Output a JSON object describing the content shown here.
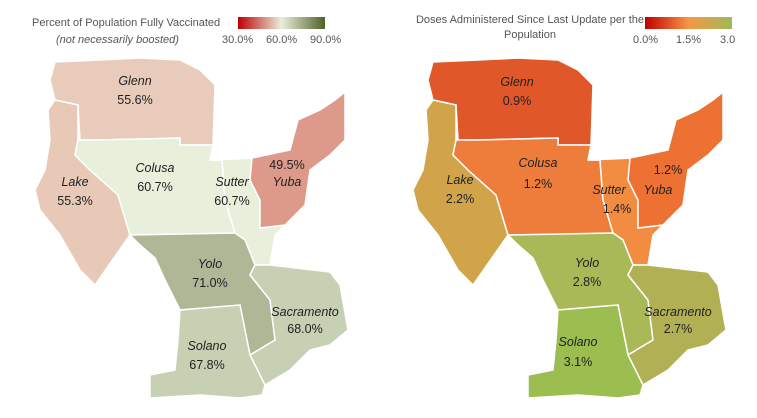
{
  "left_map": {
    "title": "Percent of Population Fully Vaccinated",
    "subtitle": "(not necessarily boosted)",
    "legend": {
      "labels": [
        "30.0%",
        "60.0%",
        "90.0%"
      ],
      "colors": [
        "#c00000",
        "#e8eedc",
        "#4f6228"
      ]
    },
    "counties": [
      {
        "name": "Glenn",
        "value": "55.6%",
        "color": "#e8cbbb"
      },
      {
        "name": "Lake",
        "value": "55.3%",
        "color": "#e8c9b8"
      },
      {
        "name": "Colusa",
        "value": "60.7%",
        "color": "#e8efdb"
      },
      {
        "name": "Sutter",
        "value": "60.7%",
        "color": "#e8efdb"
      },
      {
        "name": "Yuba",
        "value": "49.5%",
        "color": "#dd9a8a"
      },
      {
        "name": "Yolo",
        "value": "71.0%",
        "color": "#afb796"
      },
      {
        "name": "Sacramento",
        "value": "68.0%",
        "color": "#c8d0b3"
      },
      {
        "name": "Solano",
        "value": "67.8%",
        "color": "#c8d0b3"
      }
    ]
  },
  "right_map": {
    "title": "Doses Administered Since Last Update per the Population",
    "legend": {
      "labels": [
        "0.0%",
        "1.5%",
        "3.0"
      ],
      "colors": [
        "#c00000",
        "#f79646",
        "#9bbb59"
      ]
    },
    "counties": [
      {
        "name": "Glenn",
        "value": "0.9%",
        "color": "#e0582a"
      },
      {
        "name": "Lake",
        "value": "2.2%",
        "color": "#d1a44a"
      },
      {
        "name": "Colusa",
        "value": "1.2%",
        "color": "#ee7c3a"
      },
      {
        "name": "Sutter",
        "value": "1.4%",
        "color": "#f28c40"
      },
      {
        "name": "Yuba",
        "value": "1.2%",
        "color": "#ec7132"
      },
      {
        "name": "Yolo",
        "value": "2.8%",
        "color": "#a9b958"
      },
      {
        "name": "Sacramento",
        "value": "2.7%",
        "color": "#b2b055"
      },
      {
        "name": "Solano",
        "value": "3.1%",
        "color": "#9cbd50"
      }
    ]
  }
}
